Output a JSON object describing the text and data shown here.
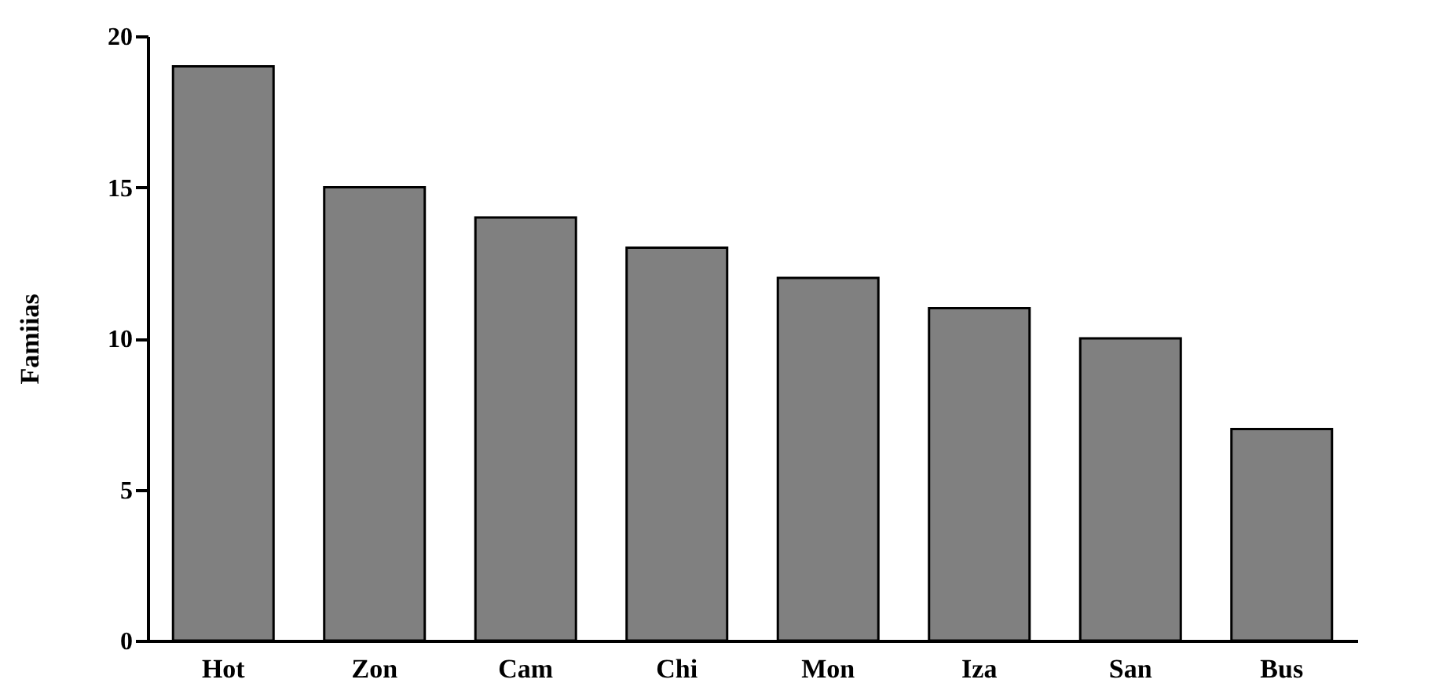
{
  "chart_data": {
    "type": "bar",
    "ylabel": "Famiias",
    "categories": [
      "Hot",
      "Zon",
      "Cam",
      "Chi",
      "Mon",
      "Iza",
      "San",
      "Bus"
    ],
    "values": [
      19,
      15,
      14,
      13,
      12,
      11,
      10,
      7
    ],
    "color": "#808080",
    "ylim": [
      0,
      20
    ],
    "yticks": [
      0,
      5,
      10,
      15,
      20
    ],
    "grid": false
  }
}
